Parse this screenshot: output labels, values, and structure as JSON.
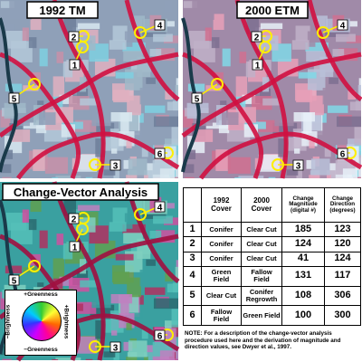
{
  "panels": [
    {
      "title": "1992 TM"
    },
    {
      "title": "2000 ETM"
    },
    {
      "title": "Change-Vector Analysis"
    }
  ],
  "markers": [
    "1",
    "2",
    "3",
    "4",
    "5",
    "6"
  ],
  "legend": {
    "top": "+Greenness",
    "bottom": "−Greenness",
    "left": "−Brightness",
    "right": "+Brightness"
  },
  "table": {
    "header": [
      "1992 Cover",
      "2000 Cover",
      "Change Magnitude (digital #)",
      "Change Direction (degrees)"
    ],
    "rows": [
      [
        "1",
        "Conifer",
        "Clear Cut",
        185,
        123
      ],
      [
        "2",
        "Conifer",
        "Clear Cut",
        124,
        120
      ],
      [
        "3",
        "Conifer",
        "Clear Cut",
        41,
        124
      ],
      [
        "4",
        "Green Field",
        "Fallow Field",
        131,
        117
      ],
      [
        "5",
        "Clear Cut",
        "Conifer Regrowth",
        108,
        306
      ],
      [
        "6",
        "Fallow Field",
        "Green Field",
        100,
        300
      ]
    ]
  },
  "note": "NOTE: For a description of the change-vector analysis procedure used here and the derivation of magnitude and direction values, see Dwyer et al., 1997."
}
